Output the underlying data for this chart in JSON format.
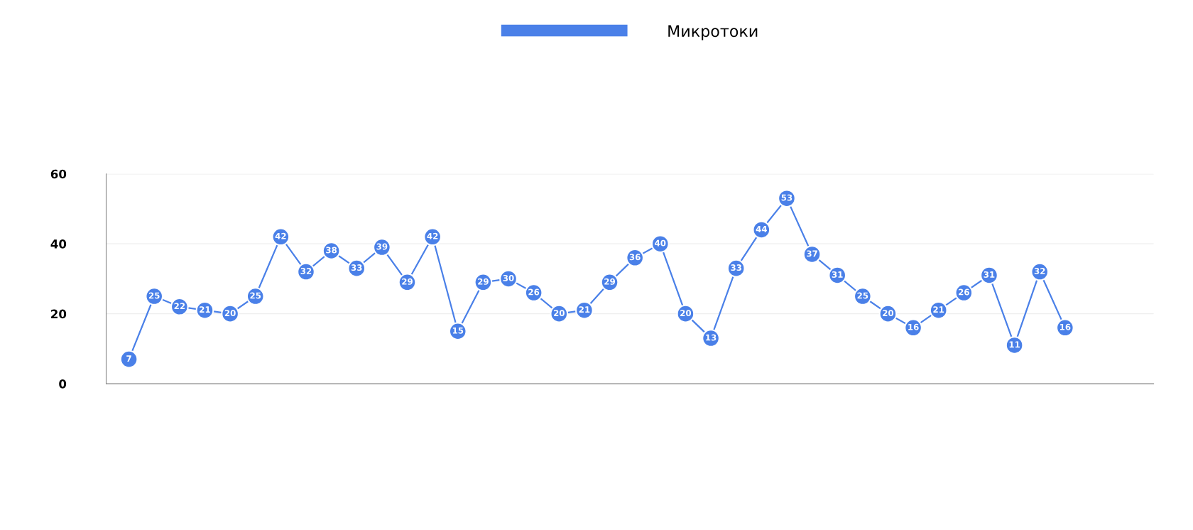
{
  "chart_data": {
    "type": "line",
    "categories": [
      null,
      null,
      null,
      null,
      null,
      null,
      null,
      null,
      null,
      null,
      null,
      null,
      null,
      null,
      null,
      null,
      null,
      null,
      null,
      null,
      null,
      null,
      null,
      null,
      null,
      null,
      null,
      null,
      null,
      null,
      null,
      null,
      null,
      null,
      null,
      null,
      null,
      null
    ],
    "series": [
      {
        "name": "Микротоки",
        "color": "#4a80e8",
        "values": [
          7,
          25,
          22,
          21,
          20,
          25,
          42,
          32,
          38,
          33,
          39,
          29,
          42,
          15,
          29,
          30,
          26,
          20,
          21,
          29,
          36,
          40,
          20,
          13,
          33,
          44,
          53,
          37,
          31,
          25,
          20,
          16,
          21,
          26,
          31,
          11,
          32,
          16
        ]
      }
    ],
    "ylim": [
      0,
      60
    ],
    "yticks": [
      0,
      20,
      40,
      60
    ],
    "grid": "y",
    "legend": "top",
    "marker": "circle",
    "line_style": "solid",
    "data_labels": true
  }
}
